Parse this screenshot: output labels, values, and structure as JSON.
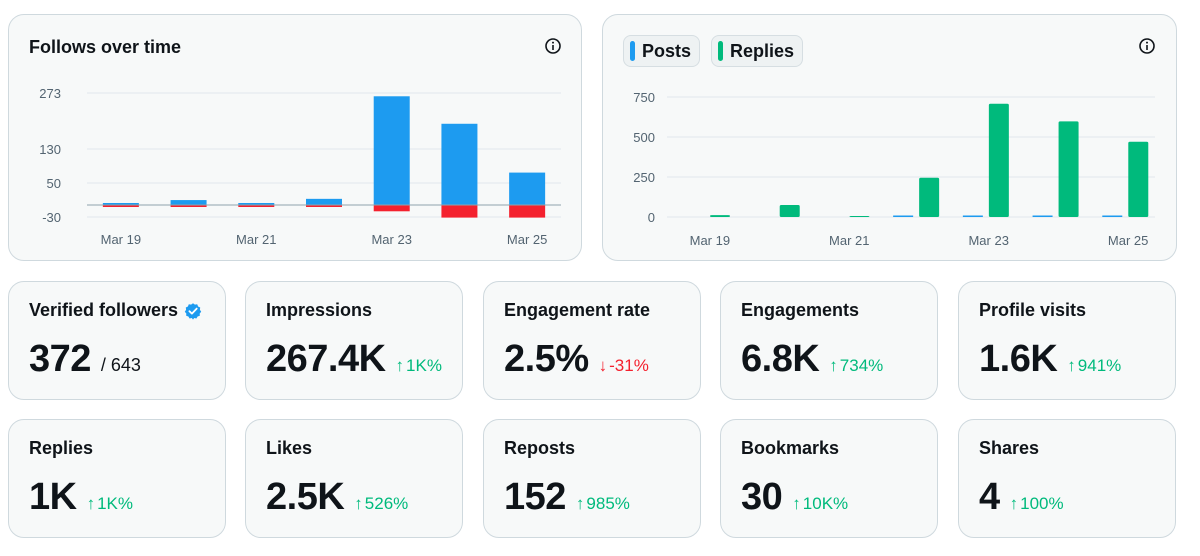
{
  "follows_chart": {
    "title": "Follows over time",
    "colors": {
      "positive": "#1d9bf0",
      "negative": "#f4212e",
      "grid": "#e1e8ed",
      "zero": "#8fa3ad"
    },
    "chart_data": {
      "type": "bar",
      "title": "Follows over time",
      "xlabel": "",
      "ylabel": "",
      "ylim": [
        -30,
        273
      ],
      "yticks": [
        273,
        130,
        50,
        -30
      ],
      "x_tick_labels": [
        "Mar 19",
        "Mar 21",
        "Mar 23",
        "Mar 25"
      ],
      "categories": [
        "Mar 19",
        "Mar 20",
        "Mar 21",
        "Mar 22",
        "Mar 23",
        "Mar 24",
        "Mar 25"
      ],
      "series": [
        {
          "name": "Follows",
          "values": [
            2,
            12,
            1,
            15,
            265,
            198,
            79
          ]
        },
        {
          "name": "Unfollows",
          "values": [
            -3,
            -4,
            -4,
            -3,
            -15,
            -30,
            -30
          ]
        }
      ]
    }
  },
  "posts_chart": {
    "legend": [
      {
        "label": "Posts",
        "color": "#1d9bf0"
      },
      {
        "label": "Replies",
        "color": "#00ba7c"
      }
    ],
    "chart_data": {
      "type": "bar",
      "title": "",
      "xlabel": "",
      "ylabel": "",
      "ylim": [
        0,
        750
      ],
      "yticks": [
        750,
        500,
        250,
        0
      ],
      "x_tick_labels": [
        "Mar 19",
        "Mar 21",
        "Mar 23",
        "Mar 25"
      ],
      "categories": [
        "Mar 19",
        "Mar 20",
        "Mar 21",
        "Mar 22",
        "Mar 23",
        "Mar 24",
        "Mar 25"
      ],
      "series": [
        {
          "name": "Posts",
          "values": [
            0,
            0,
            0,
            5,
            6,
            6,
            6
          ]
        },
        {
          "name": "Replies",
          "values": [
            12,
            75,
            2,
            245,
            708,
            598,
            470
          ]
        }
      ]
    }
  },
  "stats": [
    {
      "label": "Verified followers",
      "value": "372",
      "sub": "/ 643",
      "verified": true
    },
    {
      "label": "Impressions",
      "value": "267.4K",
      "change": "1K%",
      "direction": "up"
    },
    {
      "label": "Engagement rate",
      "value": "2.5%",
      "change": "-31%",
      "direction": "down"
    },
    {
      "label": "Engagements",
      "value": "6.8K",
      "change": "734%",
      "direction": "up"
    },
    {
      "label": "Profile visits",
      "value": "1.6K",
      "change": "941%",
      "direction": "up"
    },
    {
      "label": "Replies",
      "value": "1K",
      "change": "1K%",
      "direction": "up"
    },
    {
      "label": "Likes",
      "value": "2.5K",
      "change": "526%",
      "direction": "up"
    },
    {
      "label": "Reposts",
      "value": "152",
      "change": "985%",
      "direction": "up"
    },
    {
      "label": "Bookmarks",
      "value": "30",
      "change": "10K%",
      "direction": "up"
    },
    {
      "label": "Shares",
      "value": "4",
      "change": "100%",
      "direction": "up"
    }
  ]
}
